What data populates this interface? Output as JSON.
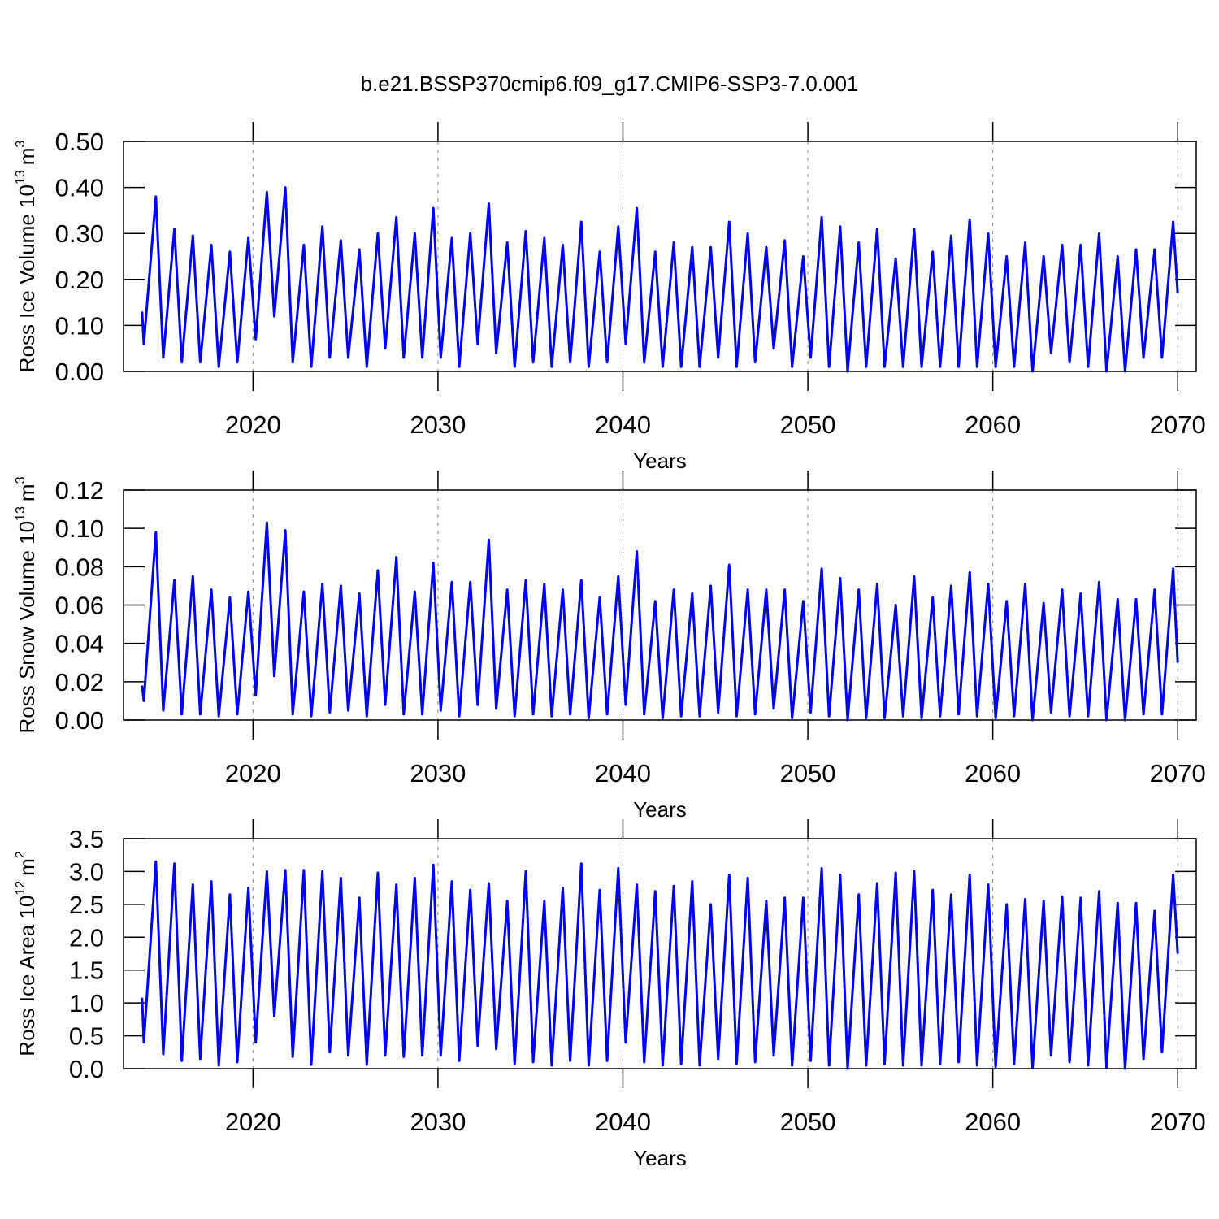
{
  "title": "b.e21.BSSP370cmip6.f09_g17.CMIP6-SSP3-7.0.001",
  "chart_data": [
    {
      "type": "line",
      "ylabel": [
        "Ross Ice Volume 10",
        "13",
        "m",
        "3"
      ],
      "xlabel": "Years",
      "xlim": [
        2013,
        2071
      ],
      "xticks": [
        2020,
        2030,
        2040,
        2050,
        2060,
        2070
      ],
      "ylim": [
        0,
        0.5
      ],
      "yticks": [
        {
          "value": 0,
          "label": "0.00"
        },
        {
          "value": 0.1,
          "label": "0.10"
        },
        {
          "value": 0.2,
          "label": "0.20"
        },
        {
          "value": 0.3,
          "label": "0.30"
        },
        {
          "value": 0.4,
          "label": "0.40"
        },
        {
          "value": 0.5,
          "label": "0.50"
        }
      ],
      "grid": true,
      "color": "#0000ff",
      "x": [
        2014.0,
        2014.1,
        2014.75,
        2015.15,
        2015.75,
        2016.15,
        2016.75,
        2017.15,
        2017.75,
        2018.15,
        2018.75,
        2019.15,
        2019.75,
        2020.15,
        2020.75,
        2021.15,
        2021.75,
        2022.15,
        2022.75,
        2023.15,
        2023.75,
        2024.15,
        2024.75,
        2025.15,
        2025.75,
        2026.15,
        2026.75,
        2027.15,
        2027.75,
        2028.15,
        2028.75,
        2029.15,
        2029.75,
        2030.15,
        2030.75,
        2031.15,
        2031.75,
        2032.15,
        2032.75,
        2033.15,
        2033.75,
        2034.15,
        2034.75,
        2035.15,
        2035.75,
        2036.15,
        2036.75,
        2037.15,
        2037.75,
        2038.15,
        2038.75,
        2039.15,
        2039.75,
        2040.15,
        2040.75,
        2041.15,
        2041.75,
        2042.15,
        2042.75,
        2043.15,
        2043.75,
        2044.15,
        2044.75,
        2045.15,
        2045.75,
        2046.15,
        2046.75,
        2047.15,
        2047.75,
        2048.15,
        2048.75,
        2049.15,
        2049.75,
        2050.15,
        2050.75,
        2051.15,
        2051.75,
        2052.15,
        2052.75,
        2053.15,
        2053.75,
        2054.15,
        2054.75,
        2055.15,
        2055.75,
        2056.15,
        2056.75,
        2057.15,
        2057.75,
        2058.15,
        2058.75,
        2059.15,
        2059.75,
        2060.15,
        2060.75,
        2061.15,
        2061.75,
        2062.15,
        2062.75,
        2063.15,
        2063.75,
        2064.15,
        2064.75,
        2065.15,
        2065.75,
        2066.15,
        2066.75,
        2067.15,
        2067.75,
        2068.15,
        2068.75,
        2069.15,
        2069.75,
        2070.0
      ],
      "values": [
        0.13,
        0.06,
        0.38,
        0.03,
        0.31,
        0.02,
        0.295,
        0.02,
        0.275,
        0.01,
        0.26,
        0.02,
        0.29,
        0.07,
        0.39,
        0.12,
        0.4,
        0.02,
        0.275,
        0.01,
        0.315,
        0.03,
        0.285,
        0.03,
        0.265,
        0.01,
        0.3,
        0.05,
        0.335,
        0.03,
        0.3,
        0.03,
        0.355,
        0.03,
        0.29,
        0.01,
        0.3,
        0.06,
        0.365,
        0.04,
        0.28,
        0.01,
        0.305,
        0.02,
        0.29,
        0.01,
        0.275,
        0.02,
        0.325,
        0.01,
        0.26,
        0.02,
        0.315,
        0.06,
        0.355,
        0.02,
        0.26,
        0.01,
        0.28,
        0.01,
        0.27,
        0.01,
        0.27,
        0.03,
        0.325,
        0.01,
        0.3,
        0.02,
        0.27,
        0.05,
        0.285,
        0.01,
        0.25,
        0.03,
        0.335,
        0.01,
        0.315,
        0,
        0.28,
        0.01,
        0.31,
        0.01,
        0.245,
        0.01,
        0.31,
        0.01,
        0.26,
        0.01,
        0.295,
        0.01,
        0.33,
        0.01,
        0.3,
        0.01,
        0.25,
        0.01,
        0.28,
        0,
        0.25,
        0.04,
        0.275,
        0.02,
        0.275,
        0.01,
        0.3,
        0,
        0.25,
        0,
        0.265,
        0.03,
        0.265,
        0.03,
        0.325,
        0.17
      ]
    },
    {
      "type": "line",
      "ylabel": [
        "Ross Snow Volume 10",
        "13",
        "m",
        "3"
      ],
      "xlabel": "Years",
      "xlim": [
        2013,
        2071
      ],
      "xticks": [
        2020,
        2030,
        2040,
        2050,
        2060,
        2070
      ],
      "ylim": [
        0,
        0.12
      ],
      "yticks": [
        {
          "value": 0,
          "label": "0.00"
        },
        {
          "value": 0.02,
          "label": "0.02"
        },
        {
          "value": 0.04,
          "label": "0.04"
        },
        {
          "value": 0.06,
          "label": "0.06"
        },
        {
          "value": 0.08,
          "label": "0.08"
        },
        {
          "value": 0.1,
          "label": "0.10"
        },
        {
          "value": 0.12,
          "label": "0.12"
        }
      ],
      "grid": true,
      "color": "#0000ff",
      "x": [
        2014.0,
        2014.1,
        2014.75,
        2015.15,
        2015.75,
        2016.15,
        2016.75,
        2017.15,
        2017.75,
        2018.15,
        2018.75,
        2019.15,
        2019.75,
        2020.15,
        2020.75,
        2021.15,
        2021.75,
        2022.15,
        2022.75,
        2023.15,
        2023.75,
        2024.15,
        2024.75,
        2025.15,
        2025.75,
        2026.15,
        2026.75,
        2027.15,
        2027.75,
        2028.15,
        2028.75,
        2029.15,
        2029.75,
        2030.15,
        2030.75,
        2031.15,
        2031.75,
        2032.15,
        2032.75,
        2033.15,
        2033.75,
        2034.15,
        2034.75,
        2035.15,
        2035.75,
        2036.15,
        2036.75,
        2037.15,
        2037.75,
        2038.15,
        2038.75,
        2039.15,
        2039.75,
        2040.15,
        2040.75,
        2041.15,
        2041.75,
        2042.15,
        2042.75,
        2043.15,
        2043.75,
        2044.15,
        2044.75,
        2045.15,
        2045.75,
        2046.15,
        2046.75,
        2047.15,
        2047.75,
        2048.15,
        2048.75,
        2049.15,
        2049.75,
        2050.15,
        2050.75,
        2051.15,
        2051.75,
        2052.15,
        2052.75,
        2053.15,
        2053.75,
        2054.15,
        2054.75,
        2055.15,
        2055.75,
        2056.15,
        2056.75,
        2057.15,
        2057.75,
        2058.15,
        2058.75,
        2059.15,
        2059.75,
        2060.15,
        2060.75,
        2061.15,
        2061.75,
        2062.15,
        2062.75,
        2063.15,
        2063.75,
        2064.15,
        2064.75,
        2065.15,
        2065.75,
        2066.15,
        2066.75,
        2067.15,
        2067.75,
        2068.15,
        2068.75,
        2069.15,
        2069.75,
        2070.0
      ],
      "values": [
        0.018,
        0.01,
        0.098,
        0.005,
        0.073,
        0.003,
        0.075,
        0.003,
        0.068,
        0.002,
        0.064,
        0.003,
        0.067,
        0.013,
        0.103,
        0.023,
        0.099,
        0.003,
        0.067,
        0.002,
        0.071,
        0.004,
        0.07,
        0.005,
        0.066,
        0.002,
        0.078,
        0.008,
        0.085,
        0.003,
        0.067,
        0.003,
        0.082,
        0.005,
        0.072,
        0.002,
        0.072,
        0.008,
        0.094,
        0.006,
        0.068,
        0.002,
        0.073,
        0.003,
        0.071,
        0.002,
        0.068,
        0.003,
        0.073,
        0.001,
        0.064,
        0.003,
        0.075,
        0.008,
        0.088,
        0.003,
        0.062,
        0.001,
        0.068,
        0.002,
        0.066,
        0.002,
        0.07,
        0.004,
        0.081,
        0.002,
        0.068,
        0.003,
        0.068,
        0.006,
        0.068,
        0.001,
        0.062,
        0.004,
        0.079,
        0.002,
        0.074,
        0,
        0.068,
        0.001,
        0.071,
        0.001,
        0.06,
        0.002,
        0.075,
        0.001,
        0.064,
        0.002,
        0.07,
        0.003,
        0.077,
        0.002,
        0.071,
        0.001,
        0.062,
        0.002,
        0.071,
        0,
        0.061,
        0.004,
        0.068,
        0.002,
        0.066,
        0.002,
        0.072,
        0,
        0.063,
        0,
        0.063,
        0.003,
        0.068,
        0.003,
        0.079,
        0.03
      ]
    },
    {
      "type": "line",
      "ylabel": [
        "Ross Ice Area 10",
        "12",
        "m",
        "2"
      ],
      "xlabel": "Years",
      "xlim": [
        2013,
        2071
      ],
      "xticks": [
        2020,
        2030,
        2040,
        2050,
        2060,
        2070
      ],
      "ylim": [
        0,
        3.5
      ],
      "yticks": [
        {
          "value": 0,
          "label": "0.0"
        },
        0.5,
        {
          "value": 1,
          "label": "1.0"
        },
        1.5,
        {
          "value": 2,
          "label": "2.0"
        },
        2.5,
        {
          "value": 3,
          "label": "3.0"
        },
        3.5
      ],
      "grid": true,
      "color": "#0000ff",
      "x": [
        2014.0,
        2014.1,
        2014.75,
        2015.15,
        2015.75,
        2016.15,
        2016.75,
        2017.15,
        2017.75,
        2018.15,
        2018.75,
        2019.15,
        2019.75,
        2020.15,
        2020.75,
        2021.15,
        2021.75,
        2022.15,
        2022.75,
        2023.15,
        2023.75,
        2024.15,
        2024.75,
        2025.15,
        2025.75,
        2026.15,
        2026.75,
        2027.15,
        2027.75,
        2028.15,
        2028.75,
        2029.15,
        2029.75,
        2030.15,
        2030.75,
        2031.15,
        2031.75,
        2032.15,
        2032.75,
        2033.15,
        2033.75,
        2034.15,
        2034.75,
        2035.15,
        2035.75,
        2036.15,
        2036.75,
        2037.15,
        2037.75,
        2038.15,
        2038.75,
        2039.15,
        2039.75,
        2040.15,
        2040.75,
        2041.15,
        2041.75,
        2042.15,
        2042.75,
        2043.15,
        2043.75,
        2044.15,
        2044.75,
        2045.15,
        2045.75,
        2046.15,
        2046.75,
        2047.15,
        2047.75,
        2048.15,
        2048.75,
        2049.15,
        2049.75,
        2050.15,
        2050.75,
        2051.15,
        2051.75,
        2052.15,
        2052.75,
        2053.15,
        2053.75,
        2054.15,
        2054.75,
        2055.15,
        2055.75,
        2056.15,
        2056.75,
        2057.15,
        2057.75,
        2058.15,
        2058.75,
        2059.15,
        2059.75,
        2060.15,
        2060.75,
        2061.15,
        2061.75,
        2062.15,
        2062.75,
        2063.15,
        2063.75,
        2064.15,
        2064.75,
        2065.15,
        2065.75,
        2066.15,
        2066.75,
        2067.15,
        2067.75,
        2068.15,
        2068.75,
        2069.15,
        2069.75,
        2070.0
      ],
      "values": [
        1.08,
        0.4,
        3.15,
        0.22,
        3.12,
        0.12,
        2.8,
        0.15,
        2.85,
        0.05,
        2.65,
        0.1,
        2.75,
        0.4,
        3.0,
        0.8,
        3.02,
        0.18,
        3.02,
        0.06,
        3.0,
        0.25,
        2.9,
        0.2,
        2.6,
        0.06,
        2.98,
        0.2,
        2.8,
        0.18,
        2.9,
        0.2,
        3.1,
        0.2,
        2.85,
        0.12,
        2.72,
        0.35,
        2.82,
        0.3,
        2.55,
        0.07,
        3.0,
        0.1,
        2.55,
        0.05,
        2.75,
        0.12,
        3.12,
        0.05,
        2.72,
        0.12,
        3.05,
        0.4,
        2.8,
        0.1,
        2.7,
        0.05,
        2.78,
        0.07,
        2.85,
        0.05,
        2.5,
        0.15,
        2.95,
        0.07,
        2.9,
        0.1,
        2.55,
        0.2,
        2.6,
        0.05,
        2.6,
        0.12,
        3.05,
        0.05,
        2.95,
        0,
        2.65,
        0.05,
        2.82,
        0.07,
        2.98,
        0.05,
        3.0,
        0.05,
        2.72,
        0.07,
        2.65,
        0.1,
        2.95,
        0.05,
        2.8,
        0.03,
        2.5,
        0.07,
        2.58,
        0.01,
        2.55,
        0.2,
        2.62,
        0.1,
        2.6,
        0.05,
        2.7,
        0.02,
        2.52,
        0,
        2.52,
        0.15,
        2.4,
        0.25,
        2.95,
        1.75
      ]
    }
  ]
}
